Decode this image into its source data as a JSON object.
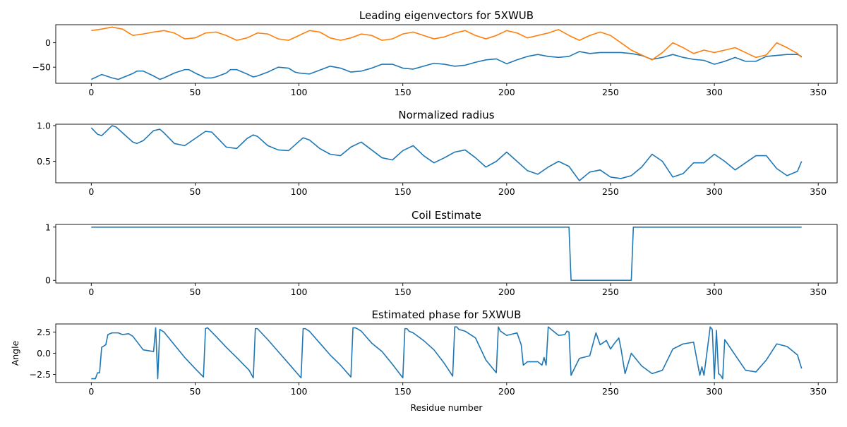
{
  "colors": {
    "blue": "#1f77b4",
    "orange": "#ff7f0e",
    "axis": "#000000",
    "background": "#ffffff"
  },
  "chart_data": [
    {
      "type": "line",
      "title": "Leading eigenvectors for 5XWUB",
      "xlabel": "",
      "ylabel": "",
      "xlim": [
        -17.1,
        359.1
      ],
      "ylim": [
        -83,
        37
      ],
      "xticks": [
        0,
        50,
        100,
        150,
        200,
        250,
        300,
        350
      ],
      "yticks": [
        0,
        -50
      ],
      "grid": false,
      "series": [
        {
          "color": "#1f77b4",
          "x": [
            0,
            5,
            10,
            13,
            20,
            22,
            25,
            30,
            33,
            35,
            40,
            45,
            47,
            50,
            55,
            58,
            60,
            65,
            67,
            70,
            75,
            78,
            80,
            85,
            90,
            95,
            98,
            100,
            105,
            110,
            115,
            120,
            125,
            130,
            135,
            140,
            145,
            150,
            155,
            160,
            165,
            170,
            175,
            180,
            185,
            190,
            195,
            200,
            205,
            210,
            215,
            220,
            225,
            230,
            235,
            240,
            245,
            250,
            255,
            260,
            265,
            270,
            275,
            280,
            285,
            290,
            295,
            300,
            305,
            310,
            315,
            320,
            325,
            330,
            335,
            340,
            342
          ],
          "y": [
            -75,
            -65,
            -72,
            -75,
            -63,
            -58,
            -58,
            -68,
            -75,
            -72,
            -62,
            -55,
            -55,
            -62,
            -72,
            -72,
            -70,
            -62,
            -55,
            -55,
            -64,
            -70,
            -68,
            -60,
            -50,
            -52,
            -60,
            -62,
            -64,
            -56,
            -48,
            -52,
            -60,
            -58,
            -52,
            -44,
            -44,
            -52,
            -54,
            -48,
            -42,
            -44,
            -48,
            -46,
            -40,
            -35,
            -33,
            -43,
            -35,
            -28,
            -24,
            -28,
            -30,
            -28,
            -18,
            -22,
            -20,
            -20,
            -20,
            -22,
            -26,
            -34,
            -30,
            -24,
            -30,
            -34,
            -36,
            -44,
            -38,
            -30,
            -38,
            -38,
            -28,
            -26,
            -24,
            -24,
            -28
          ]
        },
        {
          "color": "#ff7f0e",
          "x": [
            0,
            5,
            10,
            15,
            20,
            25,
            30,
            35,
            40,
            45,
            50,
            55,
            60,
            65,
            70,
            75,
            80,
            85,
            90,
            95,
            100,
            105,
            110,
            115,
            120,
            125,
            130,
            135,
            140,
            145,
            150,
            155,
            160,
            165,
            170,
            175,
            180,
            185,
            190,
            195,
            200,
            205,
            210,
            215,
            220,
            225,
            230,
            235,
            240,
            245,
            250,
            255,
            260,
            265,
            270,
            275,
            280,
            285,
            290,
            295,
            300,
            305,
            310,
            315,
            320,
            325,
            330,
            335,
            340,
            342
          ],
          "y": [
            25,
            28,
            32,
            28,
            15,
            18,
            22,
            25,
            20,
            8,
            10,
            20,
            22,
            15,
            5,
            10,
            20,
            18,
            8,
            5,
            15,
            25,
            22,
            10,
            5,
            10,
            18,
            15,
            5,
            8,
            18,
            22,
            15,
            8,
            12,
            20,
            25,
            15,
            8,
            15,
            25,
            20,
            10,
            15,
            20,
            27,
            15,
            5,
            15,
            22,
            15,
            0,
            -15,
            -25,
            -35,
            -20,
            0,
            -10,
            -22,
            -15,
            -20,
            -15,
            -10,
            -20,
            -30,
            -25,
            0,
            -10,
            -22,
            -30
          ]
        }
      ]
    },
    {
      "type": "line",
      "title": "Normalized radius",
      "xlabel": "",
      "ylabel": "",
      "xlim": [
        -17.1,
        359.1
      ],
      "ylim": [
        0.2,
        1.02
      ],
      "xticks": [
        0,
        50,
        100,
        150,
        200,
        250,
        300,
        350
      ],
      "yticks": [
        1.0,
        0.5
      ],
      "grid": false,
      "series": [
        {
          "color": "#1f77b4",
          "x": [
            0,
            3,
            5,
            10,
            12,
            15,
            20,
            22,
            25,
            30,
            33,
            35,
            40,
            45,
            50,
            55,
            58,
            60,
            65,
            70,
            75,
            78,
            80,
            85,
            90,
            95,
            100,
            102,
            105,
            110,
            115,
            120,
            125,
            130,
            135,
            140,
            145,
            150,
            155,
            160,
            165,
            170,
            175,
            180,
            185,
            190,
            195,
            200,
            205,
            210,
            215,
            220,
            225,
            230,
            235,
            240,
            245,
            250,
            255,
            260,
            265,
            270,
            275,
            280,
            285,
            290,
            295,
            300,
            305,
            310,
            315,
            320,
            325,
            330,
            335,
            340,
            342
          ],
          "y": [
            0.97,
            0.88,
            0.86,
            1.0,
            0.98,
            0.9,
            0.77,
            0.75,
            0.79,
            0.93,
            0.95,
            0.9,
            0.75,
            0.72,
            0.82,
            0.92,
            0.91,
            0.85,
            0.7,
            0.68,
            0.82,
            0.87,
            0.85,
            0.72,
            0.66,
            0.65,
            0.78,
            0.83,
            0.8,
            0.68,
            0.6,
            0.58,
            0.7,
            0.77,
            0.66,
            0.55,
            0.52,
            0.65,
            0.72,
            0.58,
            0.48,
            0.55,
            0.63,
            0.66,
            0.55,
            0.42,
            0.5,
            0.63,
            0.5,
            0.37,
            0.32,
            0.42,
            0.5,
            0.43,
            0.23,
            0.35,
            0.38,
            0.28,
            0.26,
            0.3,
            0.42,
            0.6,
            0.5,
            0.28,
            0.33,
            0.48,
            0.48,
            0.6,
            0.5,
            0.38,
            0.48,
            0.58,
            0.58,
            0.4,
            0.3,
            0.36,
            0.5
          ]
        }
      ]
    },
    {
      "type": "line",
      "title": "Coil Estimate",
      "xlabel": "",
      "ylabel": "",
      "xlim": [
        -17.1,
        359.1
      ],
      "ylim": [
        -0.05,
        1.05
      ],
      "xticks": [
        0,
        50,
        100,
        150,
        200,
        250,
        300,
        350
      ],
      "yticks": [
        1,
        0
      ],
      "grid": false,
      "series": [
        {
          "color": "#1f77b4",
          "x": [
            0,
            230,
            231,
            260,
            261,
            342
          ],
          "y": [
            1,
            1,
            0,
            0,
            1,
            1
          ]
        }
      ]
    },
    {
      "type": "line",
      "title": "Estimated phase for 5XWUB",
      "xlabel": "Residue number",
      "ylabel": "Angle",
      "xlim": [
        -17.1,
        359.1
      ],
      "ylim": [
        -3.45,
        3.45
      ],
      "xticks": [
        0,
        50,
        100,
        150,
        200,
        250,
        300,
        350
      ],
      "yticks": [
        2.5,
        0.0,
        -2.5
      ],
      "grid": false,
      "series": [
        {
          "color": "#1f77b4",
          "x": [
            0,
            2,
            3,
            4,
            5,
            7,
            8,
            10,
            13,
            15,
            18,
            20,
            25,
            30,
            31,
            32,
            33,
            35,
            40,
            45,
            50,
            54,
            55,
            56,
            60,
            65,
            70,
            76,
            78,
            79,
            80,
            85,
            90,
            95,
            101,
            102,
            103,
            105,
            110,
            115,
            120,
            125,
            126,
            127,
            128,
            130,
            135,
            140,
            145,
            150,
            151,
            152,
            153,
            155,
            160,
            165,
            170,
            174,
            175,
            176,
            177,
            180,
            185,
            190,
            195,
            196,
            197,
            200,
            205,
            207,
            208,
            210,
            215,
            217,
            218,
            219,
            220,
            225,
            228,
            229,
            230,
            231,
            235,
            240,
            243,
            245,
            248,
            250,
            252,
            254,
            255,
            257,
            260,
            265,
            270,
            275,
            280,
            285,
            290,
            293,
            294,
            295,
            298,
            299,
            300,
            301,
            302,
            303,
            304,
            305,
            310,
            315,
            320,
            325,
            330,
            335,
            340,
            342
          ],
          "y": [
            -3,
            -3,
            -2.3,
            -2.3,
            0.7,
            1.0,
            2.2,
            2.4,
            2.4,
            2.2,
            2.3,
            2.0,
            0.4,
            0.2,
            3.0,
            -3.0,
            2.8,
            2.5,
            1.0,
            -0.5,
            -1.8,
            -2.8,
            2.9,
            3.0,
            2.0,
            0.7,
            -0.5,
            -2.0,
            -2.9,
            2.9,
            2.9,
            1.6,
            0.2,
            -1.2,
            -2.9,
            2.9,
            2.9,
            2.6,
            1.2,
            -0.2,
            -1.4,
            -2.8,
            3.0,
            3.0,
            2.9,
            2.6,
            1.2,
            0.2,
            -1.3,
            -2.9,
            2.9,
            2.9,
            2.6,
            2.4,
            1.5,
            0.4,
            -1.2,
            -2.7,
            3.1,
            3.1,
            2.8,
            2.6,
            1.8,
            -0.8,
            -2.3,
            3.1,
            2.6,
            2.1,
            2.4,
            1.0,
            -1.4,
            -1.0,
            -1.0,
            -1.4,
            -0.5,
            -1.4,
            3.1,
            2.1,
            2.2,
            2.6,
            2.5,
            -2.6,
            -0.6,
            -0.3,
            2.4,
            1.0,
            1.5,
            0.5,
            1.2,
            1.8,
            0.6,
            -2.4,
            0.0,
            -1.5,
            -2.4,
            -2.0,
            0.5,
            1.1,
            1.3,
            -2.6,
            -1.6,
            -2.6,
            3.1,
            2.8,
            -3.0,
            2.7,
            -2.4,
            -2.6,
            -3.0,
            1.6,
            -0.2,
            -2.0,
            -2.2,
            -0.8,
            1.1,
            0.8,
            -0.2,
            -1.8
          ]
        }
      ]
    }
  ]
}
